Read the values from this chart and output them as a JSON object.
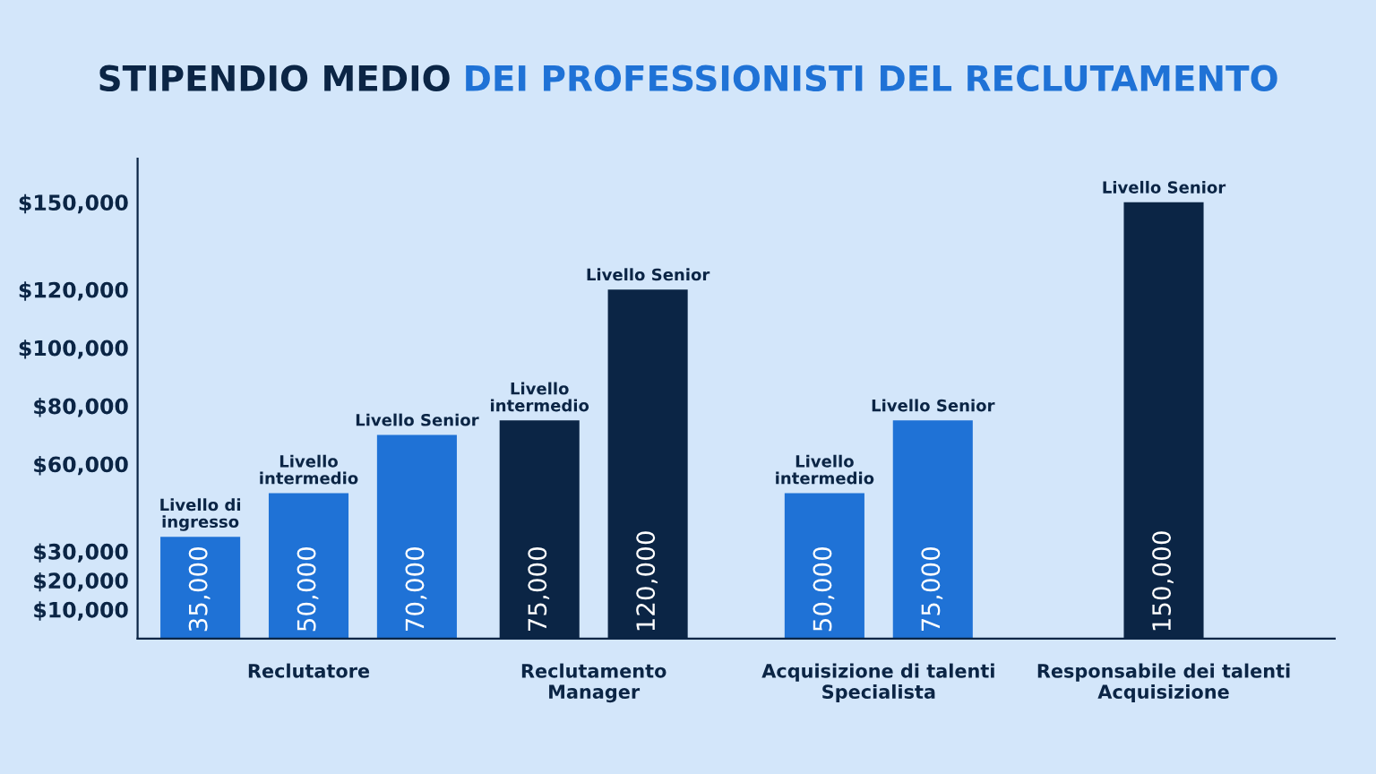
{
  "chart_data": {
    "type": "bar",
    "title": "STIPENDIO MEDIO DEI PROFESSIONISTI DEL RECLUTAMENTO",
    "categories": [
      "Reclutatore",
      "Reclutamento\nManager",
      "Acquisizione di talenti\nSpecialista",
      "Responsabile dei talenti\nAcquisizione"
    ],
    "series": [
      {
        "name": "Livello di ingresso",
        "values": [
          35000,
          null,
          null,
          null
        ],
        "colors": [
          "#1f72d6",
          null,
          null,
          null
        ],
        "value_labels": [
          "35,000",
          null,
          null,
          null
        ]
      },
      {
        "name": "Livello intermedio",
        "values": [
          50000,
          75000,
          50000,
          null
        ],
        "colors": [
          "#1f72d6",
          "#0b2545",
          "#1f72d6",
          null
        ],
        "value_labels": [
          "50,000",
          "75,000",
          "50,000",
          null
        ]
      },
      {
        "name": "Livello Senior",
        "values": [
          70000,
          120000,
          75000,
          150000
        ],
        "colors": [
          "#1f72d6",
          "#0b2545",
          "#1f72d6",
          "#0b2545"
        ],
        "value_labels": [
          "70,000",
          "120,000",
          "75,000",
          "150,000"
        ]
      }
    ],
    "ylim": [
      0,
      165000
    ],
    "yticks": [
      {
        "value": 10000,
        "label": "$10,000"
      },
      {
        "value": 20000,
        "label": "$20,000"
      },
      {
        "value": 30000,
        "label": "$30,000"
      },
      {
        "value": 60000,
        "label": "$60,000"
      },
      {
        "value": 80000,
        "label": "$80,000"
      },
      {
        "value": 100000,
        "label": "$100,000"
      },
      {
        "value": 120000,
        "label": "$120,000"
      },
      {
        "value": 150000,
        "label": "$150,000"
      }
    ],
    "grid": false,
    "legend": false
  }
}
